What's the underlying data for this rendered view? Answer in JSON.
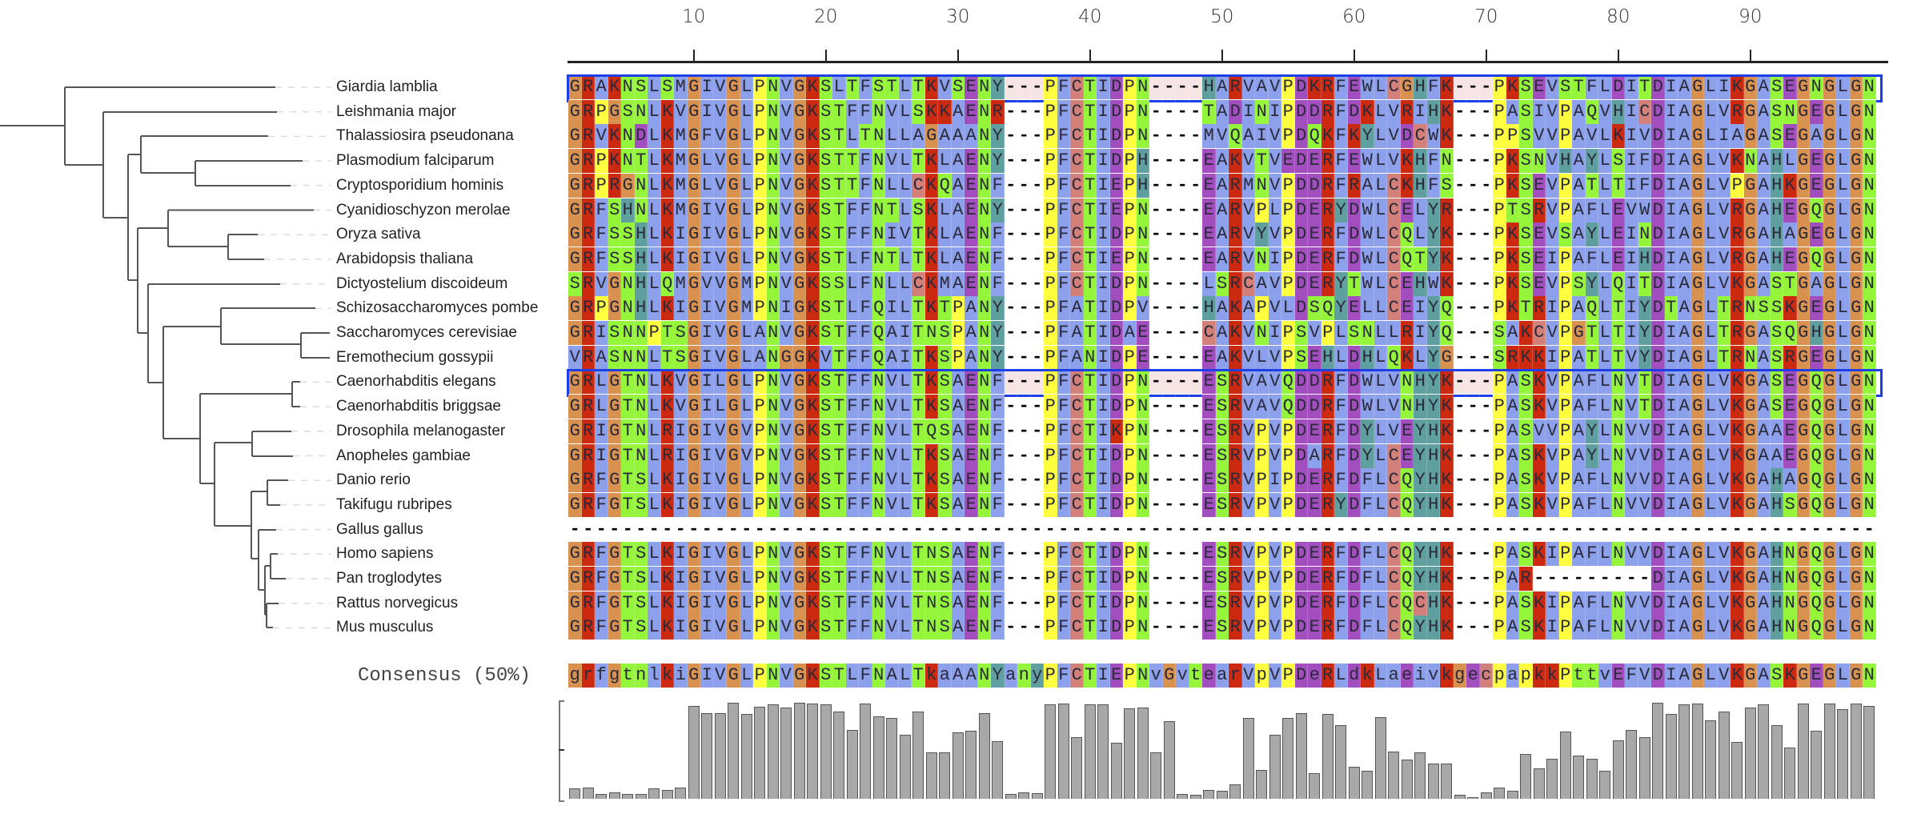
{
  "ruler": {
    "ticks": [
      10,
      20,
      30,
      40,
      50,
      60,
      70,
      80,
      90
    ]
  },
  "color_scheme": {
    "G": "#d8914f",
    "R": "#cc2a10",
    "K": "#cc2a10",
    "P": "#ffff40",
    "S": "#94f53a",
    "T": "#94f53a",
    "N": "#94f53a",
    "Q": "#94f53a",
    "A": "#8ca0ec",
    "I": "#8ca0ec",
    "L": "#8ca0ec",
    "M": "#8ca0ec",
    "F": "#8ca0ec",
    "V": "#8ca0ec",
    "W": "#8ca0ec",
    "D": "#a24ebf",
    "E": "#a24ebf",
    "H": "#5f9f9f",
    "Y": "#5f9f9f",
    "C": "#d4807a",
    "selected_gap": "#f7e4e4",
    "selection_border": "#1f3fe6"
  },
  "sequences": [
    {
      "name": "Giardia lamblia",
      "selected": true,
      "seq": "GRAKNSLSMGIVGLPNVGKSLTFSTLTKVSENY---PFCTIDPN----HARVAVPDKRFEWLCGHFK---PKSEVSTFLDITDIAGLIKGASEGNGLGN"
    },
    {
      "name": "Leishmania major",
      "seq": "GRPGSNLKVGIVGLPNVGKSTFFNVLSKKAENR---PFCTIDPN----TADINIPDDRFDKLVRIHK---PASIVPAQVHICDIAGLVRGASNGEGLGN"
    },
    {
      "name": "Thalassiosira pseudonana",
      "seq": "GRVKNDLKMGFVGLPNVGKSTLTNLLAGAAANY---PFCTIDPN----MVQAIVPDQKFKYLVDCWK---PPSVVPAVLKIVDIAGLIAGASEGAGLGN"
    },
    {
      "name": "Plasmodium falciparum",
      "seq": "GRPKNTLKMGLVGLPNVGKSTTFNVLTKLAENY---PFCTIDPH----EAKVTVEDERFEWLVKHFN---PKSNVHAYLSIFDIAGLVKNAHLGEGLGN"
    },
    {
      "name": "Cryptosporidium hominis",
      "seq": "GRPRGNLKMGLVGLPNVGKSTTFNLLCKQAENF---PFCTIEPH----EARMNVPDDRFRALCKHFS---PKSEVPATLTIFDIAGLVPGAHKGEGLGN"
    },
    {
      "name": "Cyanidioschyzon merolae",
      "seq": "GRFSHNLKMGIVGLPNVGKSTFFNTLSKLAENY---PFCTIEPN----EARVPLPDERYDWLCELYR---PTSRVPAFLEVWDIAGLVRGAHEGQGLGN"
    },
    {
      "name": "Oryza sativa",
      "seq": "GRFSSHLKIGIVGLPNVGKSTFFNIVTKLAENF---PFCTIDPN----EARVYVPDERFDWLCQLYK---PKSEVSAYLEINDIAGLVRGAHAGEGLGN"
    },
    {
      "name": "Arabidopsis thaliana",
      "seq": "GRFSSHLKIGIVGLPNVGKSTLFNTLTKLAENF---PFCTIEPN----EARVNIPDERFDWLCQTYK---PKSEIPAFLEIHDIAGLVRGAHEGQGLGN"
    },
    {
      "name": "Dictyostelium discoideum",
      "seq": "SRVGNHLQMGVVGMPNVGKSSLFNLLCKMAENF---PFCTIDPN----LSRCAVPDERYTWLCEHWK---PKSEVPSYLQITDIAGLVKGASTGAGLGN"
    },
    {
      "name": "Schizosaccharomyces pombe",
      "seq": "GRPGNHLKIGIVGMPNIGKSTLFQILTKTPANY---PFATIDPV----HAKAPVLDSQYELLCEIYQ---PKTRIPAQLTIYDTAGLTRNSSKGEGLGN"
    },
    {
      "name": "Saccharomyces cerevisiae",
      "seq": "GRISNNPTSGIVGLANVGKSTFFQAITNSPANY---PFATIDAE----CAKVNIPSVPLSNLLRIYQ---SAKCVPGTLTIYDIAGLTRGASQGHGLGN"
    },
    {
      "name": "Eremothecium gossypii",
      "seq": "VRASNNLTSGIVGLANGGKVTFFQAITKSPANY---PFANIDPE----EAKVLVPSEHLDHLQKLYG---SRKKIPATLTVYDIAGLTRNASRGEGLGN"
    },
    {
      "name": "Caenorhabditis elegans",
      "selected": true,
      "seq": "GRLGTNLKVGILGLPNVGKSTFFNVLTKSAENF---PFCTIDPN----ESRVAVQDDRFDWLVNHYK---PASKVPAFLNVTDIAGLVKGASEGQGLGN"
    },
    {
      "name": "Caenorhabditis briggsae",
      "seq": "GRLGTNLKVGILGLPNVGKSTFFNVLTKSAENF---PFCTIDPN----ESRVAVQDDRFDWLVNHYK---PASKVPAFLNVTDIAGLVKGASEGQGLGN"
    },
    {
      "name": "Drosophila melanogaster",
      "seq": "GRIGTNLRIGIVGVPNVGKSTFFNVLTQSAENF---PFCTIKPN----ESRVPVPDERFDYLVEYHK---PASVVPAYLNVVDIAGLVKGAAEGQGLGN"
    },
    {
      "name": "Anopheles gambiae",
      "seq": "GRIGTNLRIGIVGVPNVGKSTFFNVLTKSAENF---PFCTIDPN----ESRVPVPDARFDYLCEYHK---PASKVPAYLNVVDIAGLVKGAAEGQGLGN"
    },
    {
      "name": "Danio rerio",
      "seq": "GRFGTSLKIGIVGLPNVGKSTFFNVLTKSAENF---PFCTIDPN----ESRVPIPDERFDFLCQYHK---PASKVPAFLNVVDIAGLVKGAHAGQGLGN"
    },
    {
      "name": "Takifugu rubripes",
      "seq": "GRFGTSLKIGIVGLPNVGKSTFFNVLTKSAENF---PFCTIDPN----ESRVPVPDERYDFLCQYHK---PASKVPAFLNVVDIAGLVKGAHSGQGLGN"
    },
    {
      "name": "Gallus gallus",
      "seq": "---------------------------------------------------------------------------------------------------"
    },
    {
      "name": "Homo sapiens",
      "seq": "GRFGTSLKIGIVGLPNVGKSTFFNVLTNSAENF---PFCTIDPN----ESRVPVPDERFDFLCQYHK---PASKIPAFLNVVDIAGLVKGAHNGQGLGN"
    },
    {
      "name": "Pan troglodytes",
      "seq": "GRFGTSLKIGIVGLPNVGKSTFFNVLTNSAENF---PFCTIDPN----ESRVPVPDERFDFLCQYHK---PAR---------DIAGLVKGAHNGQGLGN"
    },
    {
      "name": "Rattus norvegicus",
      "seq": "GRFGTSLKIGIVGLPNVGKSTFFNVLTNSAENF---PFCTIDPN----ESRVPVPDERFDFLCQCHK---PASKIPAFLNVVDIAGLVKGAHNGQGLGN"
    },
    {
      "name": "Mus musculus",
      "seq": "GRFGTSLKIGIVGLPNVGKSTFFNVLTNSAENF---PFCTIDPN----ESRVPVPDERFDFLCQYHK---PASKIPAFLNVVDIAGLVKGAHNGQGLGN"
    }
  ],
  "consensus": {
    "label": "Consensus (50%)",
    "seq": "grfgtnlkiGIVGLPNVGKSTLFNALTkaAANYanyPFCTIEPNvGvtearVpVPDeRLdkLaeivkgecpapkkPttvEFVDIAGLVKGASKGEGLGN"
  },
  "conservation": [
    0.11,
    0.12,
    0.05,
    0.07,
    0.05,
    0.05,
    0.11,
    0.09,
    0.12,
    0.97,
    0.89,
    0.89,
    1.0,
    0.88,
    0.96,
    0.98,
    0.95,
    1.0,
    0.99,
    0.98,
    0.91,
    0.72,
    0.99,
    0.86,
    0.84,
    0.67,
    0.91,
    0.48,
    0.48,
    0.69,
    0.71,
    0.89,
    0.6,
    0.05,
    0.07,
    0.06,
    0.98,
    0.99,
    0.64,
    0.98,
    0.98,
    0.58,
    0.94,
    0.95,
    0.48,
    0.81,
    0.05,
    0.04,
    0.09,
    0.08,
    0.15,
    0.84,
    0.3,
    0.67,
    0.84,
    0.89,
    0.27,
    0.88,
    0.77,
    0.33,
    0.29,
    0.85,
    0.49,
    0.41,
    0.48,
    0.37,
    0.37,
    0.04,
    0.02,
    0.07,
    0.12,
    0.08,
    0.47,
    0.32,
    0.42,
    0.7,
    0.45,
    0.42,
    0.29,
    0.61,
    0.72,
    0.64,
    1.0,
    0.88,
    0.98,
    0.99,
    0.82,
    0.91,
    0.59,
    0.95,
    0.98,
    0.77,
    0.53,
    0.99,
    0.71,
    0.99,
    0.93,
    0.99,
    0.97
  ]
}
